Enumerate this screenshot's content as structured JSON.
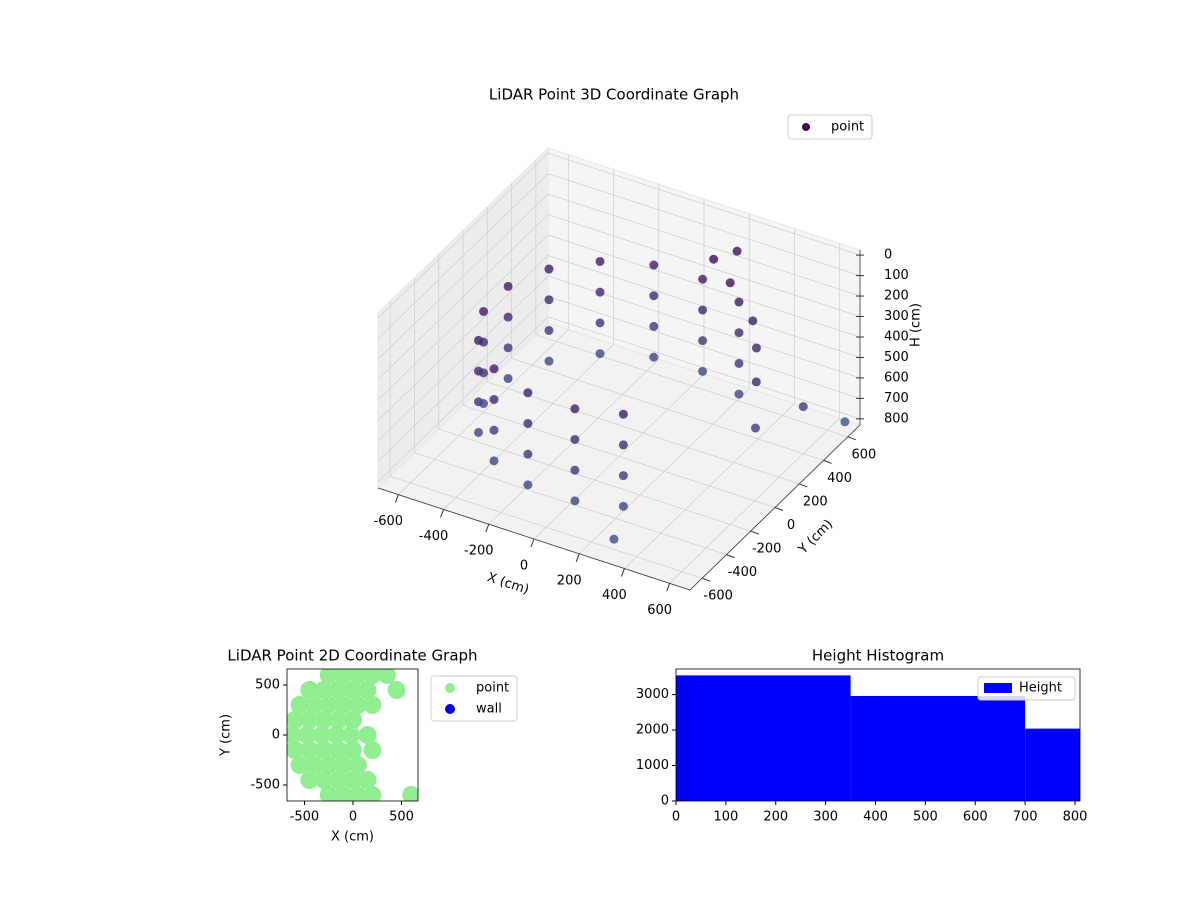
{
  "chart_data": [
    {
      "type": "scatter3d",
      "title": "LiDAR Point 3D Coordinate Graph",
      "xlabel": "X (cm)",
      "ylabel": "Y (cm)",
      "zlabel": "H (cm)",
      "xlim": [
        -690,
        690
      ],
      "ylim": [
        -700,
        700
      ],
      "zlim": [
        830,
        -25
      ],
      "xticks": [
        -600,
        -400,
        -200,
        0,
        200,
        400,
        600
      ],
      "yticks": [
        -600,
        -400,
        -200,
        0,
        200,
        400,
        600
      ],
      "zticks": [
        0,
        100,
        200,
        300,
        400,
        500,
        600,
        700,
        800
      ],
      "grid": true,
      "colormap": "viridis",
      "series": [
        {
          "name": "point",
          "color": "#440154",
          "x": [
            275,
            77,
            -133,
            -323,
            -466,
            -542,
            -538,
            -456,
            -308,
            -114,
            96,
            275,
            275,
            77,
            -133,
            -323,
            -466,
            -542,
            -538,
            -456,
            -308,
            -114,
            96,
            275,
            275,
            77,
            -133,
            -323,
            -466,
            -542,
            -538,
            -456,
            -308,
            -114,
            96,
            275,
            275,
            77,
            -133,
            -323,
            -466,
            -542,
            -538,
            -456,
            -308,
            -114,
            96,
            275,
            350,
            420,
            500,
            550,
            600,
            650,
            300,
            200,
            150,
            250
          ],
          "y": [
            476,
            545,
            534,
            445,
            291,
            96,
            -114,
            -308,
            -456,
            -538,
            -542,
            -476,
            476,
            545,
            534,
            445,
            291,
            96,
            -114,
            -308,
            -456,
            -538,
            -542,
            -476,
            476,
            545,
            534,
            445,
            291,
            96,
            -114,
            -308,
            -456,
            -538,
            -542,
            -476,
            476,
            545,
            534,
            445,
            291,
            96,
            -114,
            -308,
            -456,
            -538,
            -542,
            -476,
            450,
            350,
            200,
            100,
            400,
            650,
            -600,
            600,
            500,
            450
          ],
          "z": [
            250,
            250,
            250,
            250,
            250,
            250,
            250,
            250,
            250,
            250,
            250,
            250,
            400,
            400,
            400,
            400,
            400,
            400,
            400,
            400,
            400,
            400,
            400,
            400,
            550,
            550,
            550,
            550,
            550,
            550,
            550,
            550,
            550,
            550,
            550,
            550,
            700,
            700,
            700,
            700,
            700,
            700,
            700,
            700,
            700,
            700,
            700,
            700,
            300,
            350,
            400,
            550,
            600,
            800,
            780,
            100,
            100,
            150
          ]
        }
      ]
    },
    {
      "type": "scatter",
      "title": "LiDAR Point 2D Coordinate Graph",
      "xlabel": "X (cm)",
      "ylabel": "Y (cm)",
      "xlim": [
        -680,
        670
      ],
      "ylim": [
        -660,
        660
      ],
      "xticks": [
        -500,
        0,
        500
      ],
      "yticks": [
        -500,
        0,
        500
      ],
      "series": [
        {
          "name": "point",
          "color": "#90ee90",
          "x": [
            -250,
            -100,
            50,
            200,
            350,
            -450,
            -300,
            -150,
            0,
            150,
            450,
            -550,
            -400,
            -250,
            -100,
            50,
            200,
            -600,
            -450,
            -300,
            -150,
            0,
            -620,
            -470,
            -320,
            -170,
            -20,
            150,
            -600,
            -450,
            -300,
            -150,
            0,
            200,
            -550,
            -400,
            -250,
            -100,
            50,
            -450,
            -300,
            -150,
            0,
            150,
            -250,
            -100,
            50,
            200,
            600
          ],
          "y": [
            600,
            600,
            600,
            600,
            600,
            450,
            450,
            450,
            450,
            450,
            450,
            300,
            300,
            300,
            300,
            300,
            300,
            150,
            150,
            150,
            150,
            150,
            0,
            0,
            0,
            0,
            0,
            0,
            -150,
            -150,
            -150,
            -150,
            -150,
            -150,
            -300,
            -300,
            -300,
            -300,
            -300,
            -450,
            -450,
            -450,
            -450,
            -450,
            -600,
            -600,
            -600,
            -600,
            -600
          ]
        },
        {
          "name": "wall",
          "color": "#0000ff",
          "x": [],
          "y": []
        }
      ]
    },
    {
      "type": "histogram",
      "title": "Height Histogram",
      "bins": [
        0,
        350,
        700,
        810
      ],
      "counts": [
        3540,
        2960,
        2040
      ],
      "name": "Height",
      "color": "#0000ff",
      "xlim": [
        0,
        810
      ],
      "ylim": [
        0,
        3720
      ],
      "xticks": [
        0,
        100,
        200,
        300,
        400,
        500,
        600,
        700,
        800
      ],
      "yticks": [
        0,
        1000,
        2000,
        3000
      ]
    }
  ]
}
